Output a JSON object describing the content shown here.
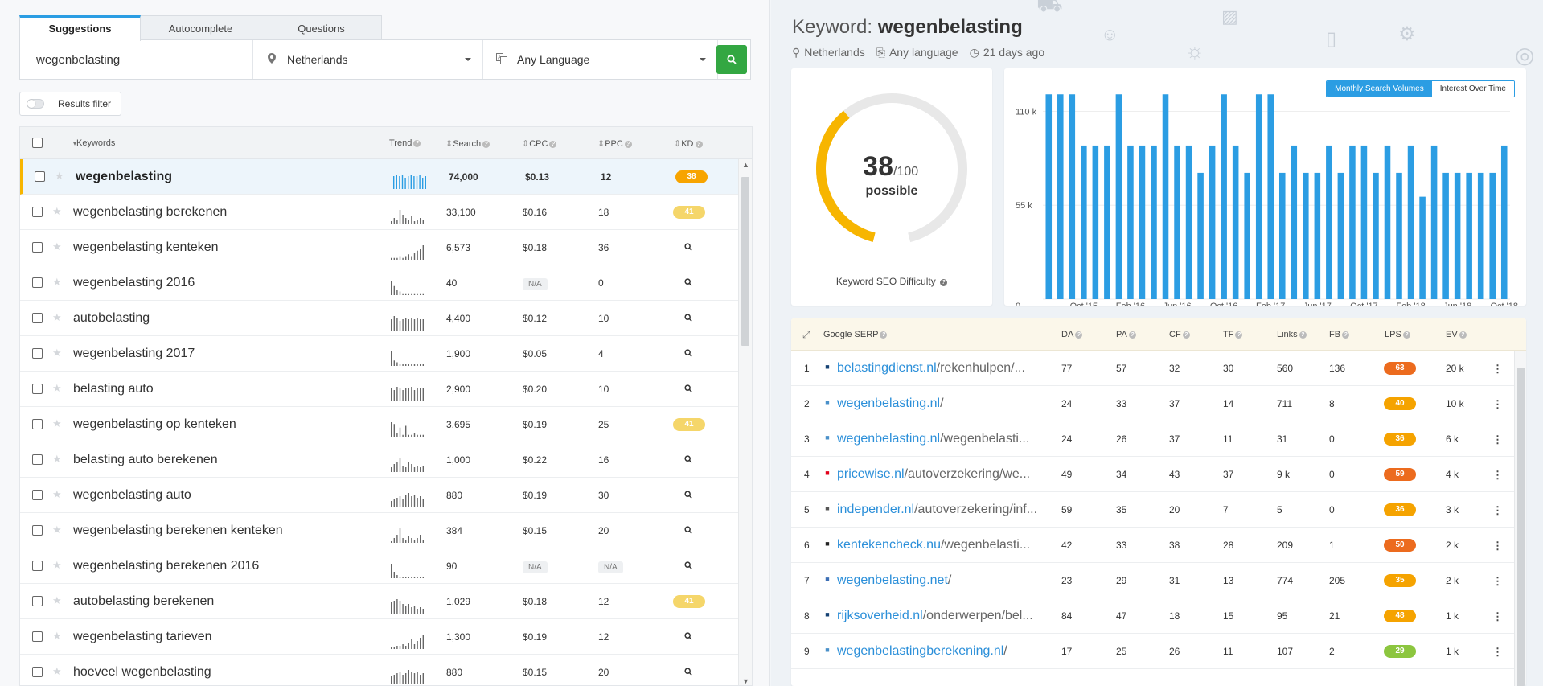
{
  "left": {
    "tabs": [
      "Suggestions",
      "Autocomplete",
      "Questions"
    ],
    "search": {
      "value": "wegenbelasting"
    },
    "location": "Netherlands",
    "language": "Any Language",
    "filter_label": "Results filter",
    "columns": {
      "keywords": "Keywords",
      "trend": "Trend",
      "search": "Search",
      "cpc": "CPC",
      "ppc": "PPC",
      "kd": "KD"
    },
    "rows": [
      {
        "kw": "wegenbelasting",
        "search": "74,000",
        "cpc": "$0.13",
        "ppc": "12",
        "kd": "38",
        "kd_color": "#f7a400",
        "trend": [
          8,
          9,
          8,
          9,
          7,
          8,
          9,
          8,
          8,
          9,
          7,
          8
        ]
      },
      {
        "kw": "wegenbelasting berekenen",
        "search": "33,100",
        "cpc": "$0.16",
        "ppc": "18",
        "kd": "41",
        "kd_color": "#f5d66a",
        "trend": [
          2,
          4,
          3,
          9,
          6,
          4,
          3,
          5,
          2,
          3,
          4,
          3
        ]
      },
      {
        "kw": "wegenbelasting kenteken",
        "search": "6,573",
        "cpc": "$0.18",
        "ppc": "36",
        "kd": "",
        "kd_color": "",
        "trend": [
          1,
          1,
          1,
          2,
          1,
          2,
          3,
          2,
          4,
          5,
          6,
          8
        ]
      },
      {
        "kw": "wegenbelasting 2016",
        "search": "40",
        "cpc": "N/A",
        "ppc": "0",
        "kd": "",
        "kd_color": "",
        "trend": [
          8,
          5,
          3,
          2,
          1,
          1,
          1,
          1,
          1,
          1,
          1,
          1
        ]
      },
      {
        "kw": "autobelasting",
        "search": "4,400",
        "cpc": "$0.12",
        "ppc": "10",
        "kd": "",
        "kd_color": "",
        "trend": [
          7,
          9,
          8,
          6,
          7,
          8,
          7,
          8,
          7,
          8,
          7,
          7
        ]
      },
      {
        "kw": "wegenbelasting 2017",
        "search": "1,900",
        "cpc": "$0.05",
        "ppc": "4",
        "kd": "",
        "kd_color": "",
        "trend": [
          8,
          3,
          2,
          1,
          1,
          1,
          1,
          1,
          1,
          1,
          1,
          1
        ]
      },
      {
        "kw": "belasting auto",
        "search": "2,900",
        "cpc": "$0.20",
        "ppc": "10",
        "kd": "",
        "kd_color": "",
        "trend": [
          8,
          7,
          9,
          8,
          7,
          8,
          8,
          9,
          7,
          8,
          8,
          8
        ]
      },
      {
        "kw": "wegenbelasting op kenteken",
        "search": "3,695",
        "cpc": "$0.19",
        "ppc": "25",
        "kd": "41",
        "kd_color": "#f5d66a",
        "trend": [
          8,
          7,
          2,
          5,
          1,
          6,
          1,
          1,
          2,
          1,
          1,
          1
        ]
      },
      {
        "kw": "belasting auto berekenen",
        "search": "1,000",
        "cpc": "$0.22",
        "ppc": "16",
        "kd": "",
        "kd_color": "",
        "trend": [
          3,
          5,
          6,
          9,
          4,
          3,
          6,
          5,
          3,
          4,
          3,
          4
        ]
      },
      {
        "kw": "wegenbelasting auto",
        "search": "880",
        "cpc": "$0.19",
        "ppc": "30",
        "kd": "",
        "kd_color": "",
        "trend": [
          4,
          5,
          6,
          7,
          5,
          8,
          9,
          7,
          8,
          6,
          7,
          5
        ]
      },
      {
        "kw": "wegenbelasting berekenen kenteken",
        "search": "384",
        "cpc": "$0.15",
        "ppc": "20",
        "kd": "",
        "kd_color": "",
        "trend": [
          1,
          3,
          5,
          9,
          3,
          2,
          4,
          3,
          2,
          3,
          5,
          2
        ]
      },
      {
        "kw": "wegenbelasting berekenen 2016",
        "search": "90",
        "cpc": "N/A",
        "ppc": "N/A",
        "kd": "",
        "kd_color": "",
        "trend": [
          9,
          4,
          2,
          1,
          1,
          1,
          1,
          1,
          1,
          1,
          1,
          1
        ]
      },
      {
        "kw": "autobelasting berekenen",
        "search": "1,029",
        "cpc": "$0.18",
        "ppc": "12",
        "kd": "41",
        "kd_color": "#f5d66a",
        "trend": [
          7,
          8,
          9,
          8,
          6,
          5,
          6,
          4,
          5,
          3,
          4,
          3
        ]
      },
      {
        "kw": "wegenbelasting tarieven",
        "search": "1,300",
        "cpc": "$0.19",
        "ppc": "12",
        "kd": "",
        "kd_color": "",
        "trend": [
          1,
          1,
          2,
          2,
          3,
          2,
          4,
          6,
          3,
          5,
          7,
          9
        ]
      },
      {
        "kw": "hoeveel wegenbelasting",
        "search": "880",
        "cpc": "$0.15",
        "ppc": "20",
        "kd": "",
        "kd_color": "",
        "trend": [
          5,
          6,
          7,
          8,
          6,
          7,
          9,
          8,
          7,
          8,
          6,
          7
        ]
      }
    ]
  },
  "right": {
    "title_prefix": "Keyword:",
    "keyword": "wegenbelasting",
    "location": "Netherlands",
    "language": "Any language",
    "age": "21 days ago",
    "kd": {
      "value": 38,
      "max": "/100",
      "word": "possible",
      "label": "Keyword SEO Difficulty"
    },
    "chart_tabs": [
      "Monthly Search Volumes",
      "Interest Over Time"
    ],
    "serp": {
      "columns": {
        "title": "Google SERP",
        "da": "DA",
        "pa": "PA",
        "cf": "CF",
        "tf": "TF",
        "links": "Links",
        "fb": "FB",
        "lps": "LPS",
        "ev": "EV"
      },
      "rows": [
        {
          "i": "1",
          "domain": "belastingdienst.nl",
          "path": "/rekenhulpen/...",
          "da": "77",
          "pa": "57",
          "cf": "32",
          "tf": "30",
          "links": "560",
          "fb": "136",
          "lps": "63",
          "lps_color": "#ec6b1e",
          "ev": "20 k",
          "fav_color": "#154273"
        },
        {
          "i": "2",
          "domain": "wegenbelasting.nl",
          "path": "/",
          "da": "24",
          "pa": "33",
          "cf": "37",
          "tf": "14",
          "links": "711",
          "fb": "8",
          "lps": "40",
          "lps_color": "#f5a300",
          "ev": "10 k",
          "fav_color": "#4a90c9"
        },
        {
          "i": "3",
          "domain": "wegenbelasting.nl",
          "path": "/wegenbelasti...",
          "da": "24",
          "pa": "26",
          "cf": "37",
          "tf": "11",
          "links": "31",
          "fb": "0",
          "lps": "36",
          "lps_color": "#f5a300",
          "ev": "6 k",
          "fav_color": "#4a90c9"
        },
        {
          "i": "4",
          "domain": "pricewise.nl",
          "path": "/autoverzekering/we...",
          "da": "49",
          "pa": "34",
          "cf": "43",
          "tf": "37",
          "links": "9 k",
          "fb": "0",
          "lps": "59",
          "lps_color": "#ec6b1e",
          "ev": "4 k",
          "fav_color": "#e2001a"
        },
        {
          "i": "5",
          "domain": "independer.nl",
          "path": "/autoverzekering/inf...",
          "da": "59",
          "pa": "35",
          "cf": "20",
          "tf": "7",
          "links": "5",
          "fb": "0",
          "lps": "36",
          "lps_color": "#f5a300",
          "ev": "3 k",
          "fav_color": "#555"
        },
        {
          "i": "6",
          "domain": "kentekencheck.nu",
          "path": "/wegenbelasti...",
          "da": "42",
          "pa": "33",
          "cf": "38",
          "tf": "28",
          "links": "209",
          "fb": "1",
          "lps": "50",
          "lps_color": "#ec6b1e",
          "ev": "2 k",
          "fav_color": "#222"
        },
        {
          "i": "7",
          "domain": "wegenbelasting.net",
          "path": "/",
          "da": "23",
          "pa": "29",
          "cf": "31",
          "tf": "13",
          "links": "774",
          "fb": "205",
          "lps": "35",
          "lps_color": "#f5a300",
          "ev": "2 k",
          "fav_color": "#3c6fb5"
        },
        {
          "i": "8",
          "domain": "rijksoverheid.nl",
          "path": "/onderwerpen/bel...",
          "da": "84",
          "pa": "47",
          "cf": "18",
          "tf": "15",
          "links": "95",
          "fb": "21",
          "lps": "48",
          "lps_color": "#f5a300",
          "ev": "1 k",
          "fav_color": "#154273"
        },
        {
          "i": "9",
          "domain": "wegenbelastingberekening.nl",
          "path": "/",
          "da": "17",
          "pa": "25",
          "cf": "26",
          "tf": "11",
          "links": "107",
          "fb": "2",
          "lps": "29",
          "lps_color": "#8cc63f",
          "ev": "1 k",
          "fav_color": "#4a90c9"
        }
      ]
    }
  },
  "chart_data": {
    "type": "bar",
    "title": "",
    "xlabel": "",
    "ylabel": "",
    "ylim": [
      0,
      122000
    ],
    "yticks": [
      0,
      55000,
      110000
    ],
    "ytick_labels": [
      "0",
      "55 k",
      "110 k"
    ],
    "xtick_labels": [
      "Oct '15",
      "Feb '16",
      "Jun '16",
      "Oct '16",
      "Feb '17",
      "Jun '17",
      "Oct '17",
      "Feb '18",
      "Jun '18",
      "Oct '18"
    ],
    "categories": [
      "Jul '15",
      "Aug '15",
      "Sep '15",
      "Oct '15",
      "Nov '15",
      "Dec '15",
      "Jan '16",
      "Feb '16",
      "Mar '16",
      "Apr '16",
      "May '16",
      "Jun '16",
      "Jul '16",
      "Aug '16",
      "Sep '16",
      "Oct '16",
      "Nov '16",
      "Dec '16",
      "Jan '17",
      "Feb '17",
      "Mar '17",
      "Apr '17",
      "May '17",
      "Jun '17",
      "Jul '17",
      "Aug '17",
      "Sep '17",
      "Oct '17",
      "Nov '17",
      "Dec '17",
      "Jan '18",
      "Feb '18",
      "Mar '18",
      "Apr '18",
      "May '18",
      "Jun '18",
      "Jul '18",
      "Aug '18",
      "Sep '18",
      "Oct '18"
    ],
    "values": [
      120000,
      120000,
      120000,
      90000,
      90000,
      90000,
      120000,
      90000,
      90000,
      90000,
      120000,
      90000,
      90000,
      74000,
      90000,
      120000,
      90000,
      74000,
      120000,
      120000,
      74000,
      90000,
      74000,
      74000,
      90000,
      74000,
      90000,
      90000,
      74000,
      90000,
      74000,
      90000,
      60000,
      90000,
      74000,
      74000,
      74000,
      74000,
      74000,
      90000
    ],
    "color": "#2b9de3",
    "grid": true
  }
}
